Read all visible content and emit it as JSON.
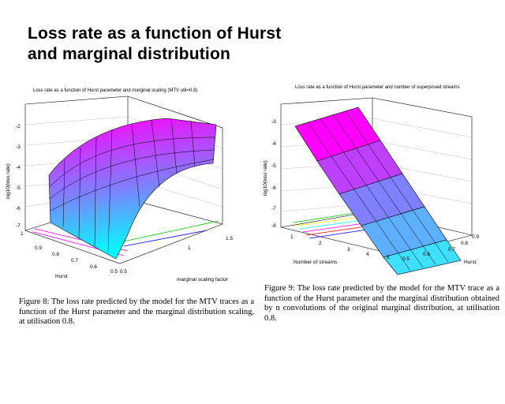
{
  "slide": {
    "title_line1": "Loss rate as a function of Hurst",
    "title_line2": "and marginal distribution"
  },
  "figure8": {
    "plot_title": "Loss rate as a function of Hurst parameter and marginal scaling (MTV util=0.8)",
    "zlabel": "log10(loss rate)",
    "xlabel": "Hurst",
    "ylabel": "marginal scaling factor",
    "z_ticks": [
      "-2",
      "-3",
      "-4",
      "-5",
      "-6",
      "-7"
    ],
    "hurst_ticks": [
      "1",
      "0.9",
      "0.8",
      "0.7",
      "0.6",
      "0.5"
    ],
    "scale_ticks": [
      "0.5",
      "1",
      "1.5"
    ],
    "caption": "Figure 8: The loss rate predicted by the model for the MTV traces as a function of the Hurst parameter and the marginal distribution scaling, at utilisation 0.8."
  },
  "figure9": {
    "plot_title": "Loss rate as a function of Hurst parameter and number of superposed streams",
    "zlabel": "log10(loss rate)",
    "xlabel": "Number of streams",
    "ylabel": "Hurst",
    "z_ticks": [
      "-3",
      "-4",
      "-5",
      "-6",
      "-7",
      "-8"
    ],
    "stream_ticks": [
      "1",
      "2",
      "3",
      "4",
      "5"
    ],
    "hurst_ticks": [
      "0.9",
      "0.8",
      "0.7",
      "0.6",
      "0.5"
    ],
    "caption": "Figure 9: The loss rate predicted by the model for the MTV trace as a function of the Hurst parameter and the marginal distribution obtained by n convolutions of the original marginal distribution, at utilisation 0.8."
  },
  "colors": {
    "surface_top": "#ff00ff",
    "surface_mid": "#7f7fff",
    "surface_low": "#00ffff",
    "axis": "#000000"
  }
}
